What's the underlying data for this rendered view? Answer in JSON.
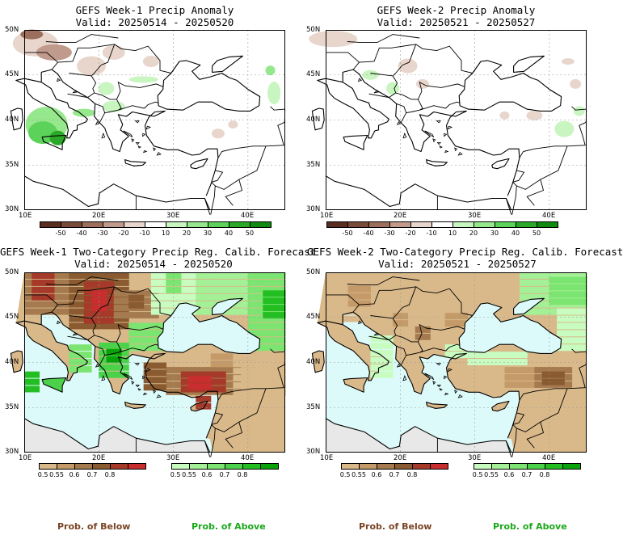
{
  "panels": [
    {
      "id": "p1",
      "title_line1": "GEFS Week-1 Precip Anomaly",
      "title_line2": "Valid: 20250514 - 20250520",
      "y_labels": [
        "50N",
        "45N",
        "40N",
        "35N",
        "30N"
      ],
      "x_labels": [
        "10E",
        "20E",
        "30E",
        "40E"
      ]
    },
    {
      "id": "p2",
      "title_line1": "GEFS Week-2 Precip Anomaly",
      "title_line2": "Valid: 20250521 - 20250527",
      "y_labels": [
        "50N",
        "45N",
        "40N",
        "35N",
        "30N"
      ],
      "x_labels": [
        "10E",
        "20E",
        "30E",
        "40E"
      ]
    },
    {
      "id": "p3",
      "title_line1": "GEFS Week-1 Two-Category Precip Reg. Calib. Forecast",
      "title_line2": "Valid: 20250514 - 20250520",
      "y_labels": [
        "50N",
        "45N",
        "40N",
        "35N",
        "30N"
      ],
      "x_labels": [
        "10E",
        "20E",
        "30E",
        "40E"
      ]
    },
    {
      "id": "p4",
      "title_line1": "GEFS Week-2 Two-Category Precip Reg. Calib. Forecast",
      "title_line2": "Valid: 20250521 - 20250527",
      "y_labels": [
        "50N",
        "45N",
        "40N",
        "35N",
        "30N"
      ],
      "x_labels": [
        "10E",
        "20E",
        "30E",
        "40E"
      ]
    }
  ],
  "anomaly_colorbar": {
    "labels": [
      "-50",
      "-40",
      "-30",
      "-20",
      "-10",
      "10",
      "20",
      "30",
      "40",
      "50"
    ],
    "colors": [
      "#5a2e20",
      "#7a4a38",
      "#9c6e5c",
      "#c09a8c",
      "#e8d6cc",
      "#ffffff",
      "#c8f5c0",
      "#96e88c",
      "#5cd25a",
      "#2aa828",
      "#108a10"
    ]
  },
  "prob_colorbar_below": {
    "labels": [
      "0.5",
      "0.55",
      "0.6",
      "0.7",
      "0.8"
    ],
    "colors": [
      "#d9b98a",
      "#c49a68",
      "#a47a4e",
      "#8a5a30",
      "#a63a2a",
      "#c82e2e"
    ]
  },
  "prob_colorbar_above": {
    "labels": [
      "0.5",
      "0.55",
      "0.6",
      "0.7",
      "0.8"
    ],
    "colors": [
      "#c8fcc0",
      "#a4f096",
      "#7ce470",
      "#4cd24a",
      "#22be22",
      "#0aa20a"
    ]
  },
  "legend": {
    "below_label": "Prob. of Below",
    "above_label": "Prob. of Above",
    "below_color": "#7a4424",
    "above_color": "#1aa81a"
  },
  "colors": {
    "sea_prob": "#ddfafa",
    "land_missing": "#e8e8e8",
    "coast": "#000000",
    "grid": "#9a9a9a"
  }
}
